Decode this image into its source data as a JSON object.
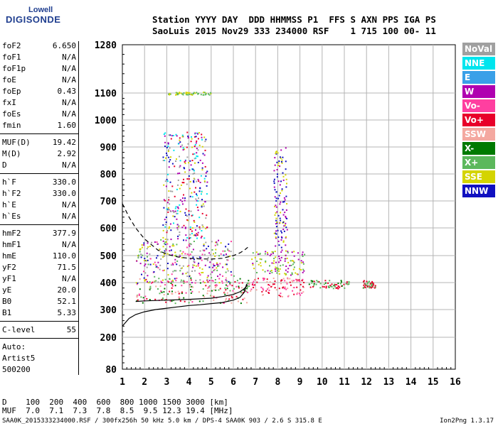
{
  "logo": {
    "line1": "Lowell",
    "line2": "DIGISONDE"
  },
  "header": {
    "line1": "Station YYYY DAY  DDD HHMMSS P1  FFS S AXN PPS IGA PS",
    "line2": "SaoLuis 2015 Nov29 333 234000 RSF    1 715 100 00- 11"
  },
  "parameters": [
    {
      "name": "foF2",
      "value": "6.650"
    },
    {
      "name": "foF1",
      "value": "N/A"
    },
    {
      "name": "foF1p",
      "value": "N/A"
    },
    {
      "name": "foE",
      "value": "N/A"
    },
    {
      "name": "foEp",
      "value": "0.43"
    },
    {
      "name": "fxI",
      "value": "N/A"
    },
    {
      "name": "foEs",
      "value": "N/A"
    },
    {
      "name": "fmin",
      "value": "1.60"
    },
    {
      "name": "MUF(D)",
      "value": "19.42"
    },
    {
      "name": "M(D)",
      "value": "2.92"
    },
    {
      "name": "D",
      "value": "N/A"
    },
    {
      "name": "h`F",
      "value": "330.0"
    },
    {
      "name": "h`F2",
      "value": "330.0"
    },
    {
      "name": "h`E",
      "value": "N/A"
    },
    {
      "name": "h`Es",
      "value": "N/A"
    },
    {
      "name": "hmF2",
      "value": "377.9"
    },
    {
      "name": "hmF1",
      "value": "N/A"
    },
    {
      "name": "hmE",
      "value": "110.0"
    },
    {
      "name": "yF2",
      "value": "71.5"
    },
    {
      "name": "yF1",
      "value": "N/A"
    },
    {
      "name": "yE",
      "value": "20.0"
    },
    {
      "name": "B0",
      "value": "52.1"
    },
    {
      "name": "B1",
      "value": "5.33"
    },
    {
      "name": "C-level",
      "value": "55"
    }
  ],
  "auto": {
    "line1": "Auto:",
    "line2": "Artist5",
    "line3": "500200"
  },
  "legend": [
    {
      "label": "NoVal",
      "color": "#a0a0a0"
    },
    {
      "label": "NNE",
      "color": "#00e5ee"
    },
    {
      "label": "E",
      "color": "#3aa0e8"
    },
    {
      "label": "W",
      "color": "#b000b0"
    },
    {
      "label": "Vo-",
      "color": "#ff3fa0"
    },
    {
      "label": "Vo+",
      "color": "#e8002a"
    },
    {
      "label": "SSW",
      "color": "#f4a8a0"
    },
    {
      "label": "X-",
      "color": "#007a00"
    },
    {
      "label": "X+",
      "color": "#5cb85c"
    },
    {
      "label": "SSE",
      "color": "#d4d400"
    },
    {
      "label": "NNW",
      "color": "#1010c0"
    }
  ],
  "dmuf": {
    "d_line": "D    100  200  400  600  800 1000 1500 3000 [km]",
    "muf_line": "MUF  7.0  7.1  7.3  7.8  8.5  9.5 12.3 19.4 [MHz]"
  },
  "footer": {
    "left": "SAA0K_2015333234000.RSF / 300fx256h 50 kHz 5.0 km / DPS-4 SAA0K 903 / 2.6 S 315.8 E",
    "right": "Ion2Png 1.3.17"
  },
  "chart_data": {
    "type": "scatter",
    "x_ticks": [
      "1",
      "2",
      "3",
      "4",
      "5",
      "6",
      "7",
      "8",
      "9",
      "10",
      "11",
      "12",
      "13",
      "14",
      "15",
      "16"
    ],
    "y_ticks": [
      "80",
      "200",
      "300",
      "400",
      "500",
      "600",
      "700",
      "800",
      "900",
      "1000",
      "1100",
      "1280"
    ],
    "xlim": [
      1,
      16
    ],
    "ylim": [
      80,
      1280
    ],
    "y_scale": "compressed-log",
    "grid": true,
    "traces": [
      {
        "color": "#000000",
        "style": "solid",
        "x": [
          1.0,
          1.3,
          1.6,
          2.0,
          2.5,
          3.0,
          3.5,
          4.0,
          4.5,
          5.0,
          5.5,
          6.0,
          6.3,
          6.5,
          6.6
        ],
        "y": [
          240,
          268,
          282,
          292,
          300,
          305,
          310,
          315,
          318,
          322,
          326,
          335,
          345,
          365,
          395
        ]
      },
      {
        "color": "#000000",
        "style": "dashed",
        "x": [
          1.0,
          1.3,
          1.6,
          2.0,
          2.3,
          2.6,
          3.0,
          3.5,
          4.0,
          4.5,
          5.0,
          5.5,
          6.0,
          6.3,
          6.5,
          6.65
        ],
        "y": [
          690,
          640,
          600,
          560,
          540,
          520,
          505,
          495,
          490,
          488,
          487,
          490,
          500,
          510,
          520,
          530
        ]
      },
      {
        "color": "#000000",
        "style": "solid",
        "x": [
          1.6,
          2.0,
          3.0,
          4.0,
          5.0,
          5.5,
          6.0,
          6.3,
          6.5,
          6.65
        ],
        "y": [
          330,
          332,
          335,
          338,
          342,
          348,
          356,
          366,
          378,
          392
        ]
      }
    ],
    "echo_clusters": [
      {
        "x_range": [
          1.6,
          6.7
        ],
        "y_range": [
          325,
          420
        ],
        "colors": [
          "#e8002a",
          "#ff3fa0",
          "#f4a8a0",
          "#5cb85c",
          "#007a00"
        ]
      },
      {
        "x_range": [
          1.6,
          6.0
        ],
        "y_range": [
          400,
          560
        ],
        "colors": [
          "#d4d400",
          "#b000b0",
          "#1010c0",
          "#ff3fa0",
          "#5cb85c",
          "#a0a0a0"
        ]
      },
      {
        "x_range": [
          2.8,
          4.8
        ],
        "y_range": [
          560,
          960
        ],
        "colors": [
          "#b000b0",
          "#d4d400",
          "#1010c0",
          "#e8002a",
          "#00e5ee",
          "#a0a0a0"
        ]
      },
      {
        "x_range": [
          6.6,
          9.2
        ],
        "y_range": [
          350,
          420
        ],
        "colors": [
          "#e8002a",
          "#ff3fa0",
          "#f4a8a0"
        ]
      },
      {
        "x_range": [
          6.8,
          9.2
        ],
        "y_range": [
          430,
          520
        ],
        "colors": [
          "#d4d400",
          "#b000b0",
          "#5cb85c"
        ]
      },
      {
        "x_range": [
          7.8,
          8.4
        ],
        "y_range": [
          520,
          900
        ],
        "colors": [
          "#b000b0",
          "#d4d400",
          "#1010c0"
        ]
      },
      {
        "x_range": [
          9.3,
          11.2
        ],
        "y_range": [
          380,
          410
        ],
        "colors": [
          "#e8002a",
          "#007a00",
          "#5cb85c"
        ]
      },
      {
        "x_range": [
          3.0,
          5.0
        ],
        "y_range": [
          1095,
          1105
        ],
        "colors": [
          "#d4d400",
          "#5cb85c"
        ]
      },
      {
        "x_range": [
          11.8,
          12.4
        ],
        "y_range": [
          380,
          410
        ],
        "colors": [
          "#e8002a",
          "#5cb85c"
        ]
      }
    ]
  }
}
